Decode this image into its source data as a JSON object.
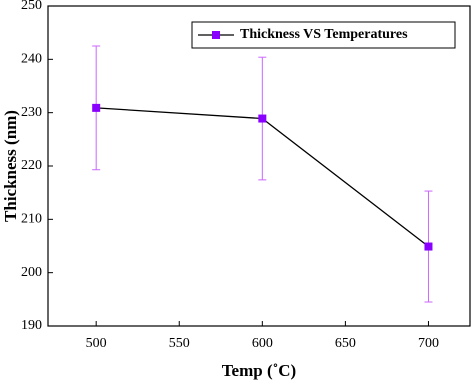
{
  "chart_data": {
    "type": "line",
    "xlabel": "Temp (˚C)",
    "ylabel": "Thickness (nm)",
    "x": [
      500,
      600,
      700
    ],
    "series": [
      {
        "name": "Thickness VS Temperatures",
        "color": "#8a00ff",
        "line_color": "#000000",
        "error_color": "#cc66ff",
        "values": [
          230.9,
          228.9,
          204.9
        ],
        "errors": [
          11.6,
          11.5,
          10.4
        ]
      }
    ],
    "xlim": [
      471,
      725
    ],
    "xticks": [
      500,
      550,
      600,
      650,
      700
    ],
    "ylim": [
      190,
      250
    ],
    "yticks": [
      190,
      200,
      210,
      220,
      230,
      240,
      250
    ],
    "legend": "upper right",
    "grid": false
  }
}
